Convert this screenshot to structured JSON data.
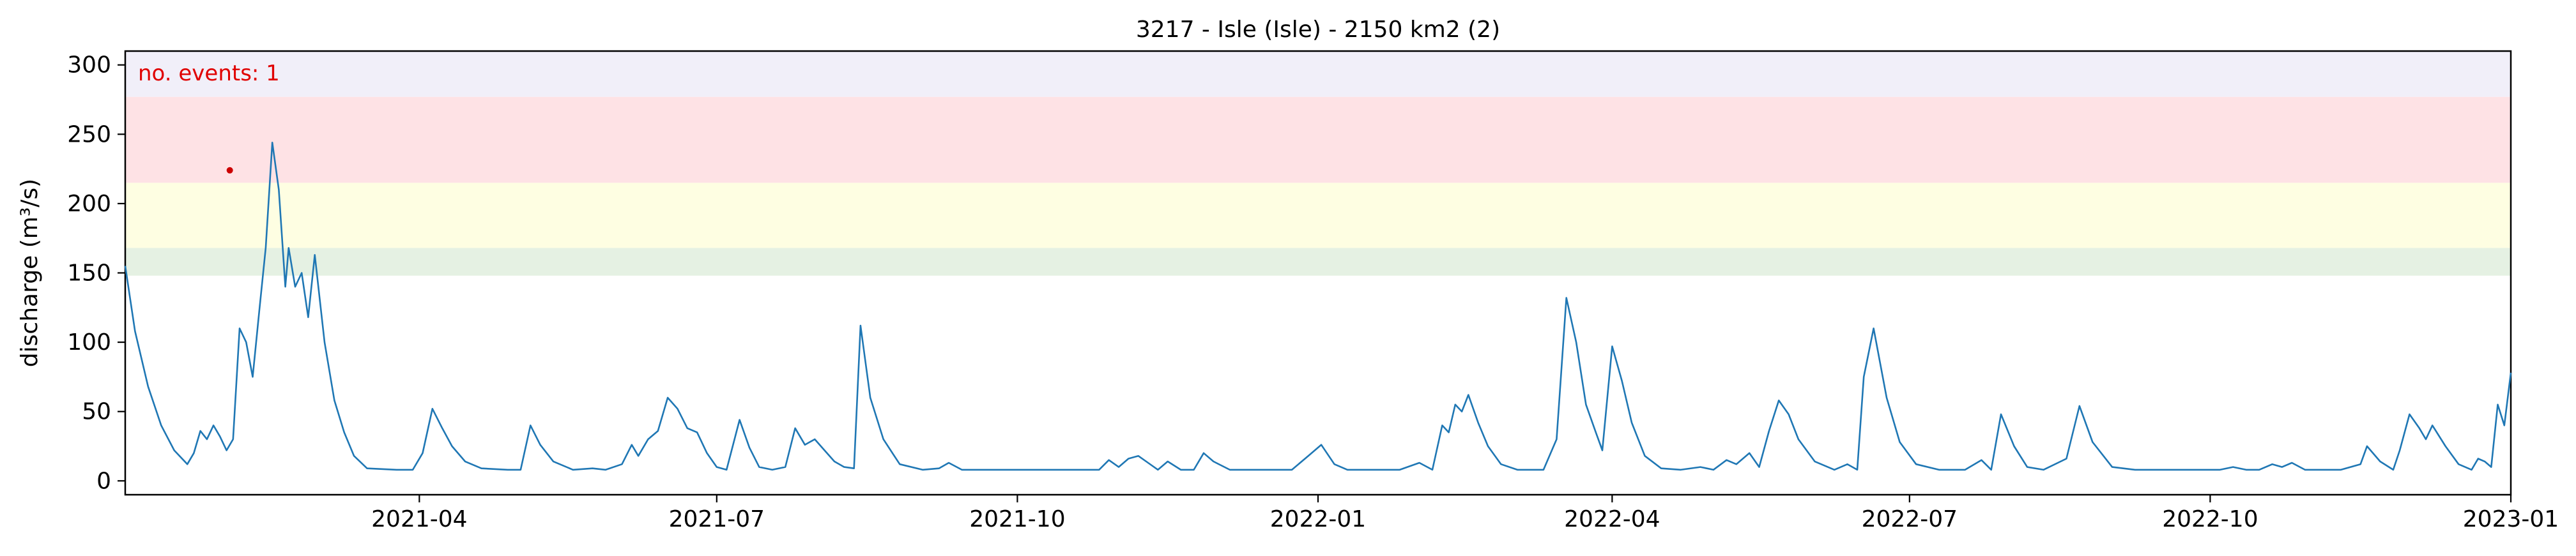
{
  "chart_data": {
    "type": "line",
    "title": "3217 - Isle (Isle) - 2150 km2 (2)",
    "xlabel": "",
    "ylabel": "discharge (m³/s)",
    "xlim": [
      "2021-01-01",
      "2023-01-01"
    ],
    "ylim": [
      -10,
      310
    ],
    "x_ticks": [
      "2021-04-01",
      "2021-07-01",
      "2021-10-01",
      "2022-01-01",
      "2022-04-01",
      "2022-07-01",
      "2022-10-01",
      "2023-01-01"
    ],
    "x_tick_labels": [
      "2021-04",
      "2021-07",
      "2021-10",
      "2022-01",
      "2022-04",
      "2022-07",
      "2022-10",
      "2023-01"
    ],
    "y_ticks": [
      0,
      50,
      100,
      150,
      200,
      250,
      300
    ],
    "y_tick_labels": [
      "0",
      "50",
      "100",
      "150",
      "200",
      "250",
      "300"
    ],
    "grid": false,
    "bands": [
      {
        "from": 148,
        "to": 168,
        "color": "#e5f1e3"
      },
      {
        "from": 168,
        "to": 215,
        "color": "#fefee2"
      },
      {
        "from": 215,
        "to": 277,
        "color": "#fee2e5"
      },
      {
        "from": 277,
        "to": 310,
        "color": "#f1eff9"
      }
    ],
    "annotation": {
      "text": "no. events: 1",
      "color": "#e00000"
    },
    "events": [
      {
        "x": "2021-02-02",
        "y": 224,
        "color": "#cc0000"
      }
    ],
    "series": [
      {
        "color": "#1f77b4",
        "points": [
          [
            "2021-01-01",
            155
          ],
          [
            "2021-01-04",
            108
          ],
          [
            "2021-01-08",
            68
          ],
          [
            "2021-01-12",
            40
          ],
          [
            "2021-01-16",
            22
          ],
          [
            "2021-01-20",
            12
          ],
          [
            "2021-01-22",
            20
          ],
          [
            "2021-01-24",
            36
          ],
          [
            "2021-01-26",
            30
          ],
          [
            "2021-01-28",
            40
          ],
          [
            "2021-01-30",
            32
          ],
          [
            "2021-02-01",
            22
          ],
          [
            "2021-02-03",
            30
          ],
          [
            "2021-02-05",
            110
          ],
          [
            "2021-02-07",
            100
          ],
          [
            "2021-02-09",
            75
          ],
          [
            "2021-02-11",
            122
          ],
          [
            "2021-02-13",
            168
          ],
          [
            "2021-02-15",
            244
          ],
          [
            "2021-02-17",
            210
          ],
          [
            "2021-02-19",
            140
          ],
          [
            "2021-02-20",
            168
          ],
          [
            "2021-02-22",
            140
          ],
          [
            "2021-02-24",
            150
          ],
          [
            "2021-02-26",
            118
          ],
          [
            "2021-02-28",
            163
          ],
          [
            "2021-03-03",
            100
          ],
          [
            "2021-03-06",
            58
          ],
          [
            "2021-03-09",
            35
          ],
          [
            "2021-03-12",
            18
          ],
          [
            "2021-03-16",
            9
          ],
          [
            "2021-03-25",
            8
          ],
          [
            "2021-03-30",
            8
          ],
          [
            "2021-04-02",
            20
          ],
          [
            "2021-04-05",
            52
          ],
          [
            "2021-04-08",
            38
          ],
          [
            "2021-04-11",
            25
          ],
          [
            "2021-04-15",
            14
          ],
          [
            "2021-04-20",
            9
          ],
          [
            "2021-04-28",
            8
          ],
          [
            "2021-05-02",
            8
          ],
          [
            "2021-05-05",
            40
          ],
          [
            "2021-05-08",
            26
          ],
          [
            "2021-05-12",
            14
          ],
          [
            "2021-05-18",
            8
          ],
          [
            "2021-05-24",
            9
          ],
          [
            "2021-05-28",
            8
          ],
          [
            "2021-06-02",
            12
          ],
          [
            "2021-06-05",
            26
          ],
          [
            "2021-06-07",
            18
          ],
          [
            "2021-06-10",
            30
          ],
          [
            "2021-06-13",
            36
          ],
          [
            "2021-06-16",
            60
          ],
          [
            "2021-06-19",
            52
          ],
          [
            "2021-06-22",
            38
          ],
          [
            "2021-06-25",
            35
          ],
          [
            "2021-06-28",
            20
          ],
          [
            "2021-07-01",
            10
          ],
          [
            "2021-07-04",
            8
          ],
          [
            "2021-07-08",
            44
          ],
          [
            "2021-07-11",
            24
          ],
          [
            "2021-07-14",
            10
          ],
          [
            "2021-07-18",
            8
          ],
          [
            "2021-07-22",
            10
          ],
          [
            "2021-07-25",
            38
          ],
          [
            "2021-07-28",
            26
          ],
          [
            "2021-07-31",
            30
          ],
          [
            "2021-08-03",
            22
          ],
          [
            "2021-08-06",
            14
          ],
          [
            "2021-08-09",
            10
          ],
          [
            "2021-08-12",
            9
          ],
          [
            "2021-08-14",
            112
          ],
          [
            "2021-08-17",
            60
          ],
          [
            "2021-08-21",
            30
          ],
          [
            "2021-08-26",
            12
          ],
          [
            "2021-09-02",
            8
          ],
          [
            "2021-09-07",
            9
          ],
          [
            "2021-09-10",
            13
          ],
          [
            "2021-09-14",
            8
          ],
          [
            "2021-09-22",
            8
          ],
          [
            "2021-10-02",
            8
          ],
          [
            "2021-10-12",
            8
          ],
          [
            "2021-10-20",
            8
          ],
          [
            "2021-10-26",
            8
          ],
          [
            "2021-10-29",
            15
          ],
          [
            "2021-11-01",
            10
          ],
          [
            "2021-11-04",
            16
          ],
          [
            "2021-11-07",
            18
          ],
          [
            "2021-11-10",
            13
          ],
          [
            "2021-11-13",
            8
          ],
          [
            "2021-11-16",
            14
          ],
          [
            "2021-11-20",
            8
          ],
          [
            "2021-11-24",
            8
          ],
          [
            "2021-11-27",
            20
          ],
          [
            "2021-11-30",
            14
          ],
          [
            "2021-12-05",
            8
          ],
          [
            "2021-12-15",
            8
          ],
          [
            "2021-12-24",
            8
          ],
          [
            "2021-12-29",
            18
          ],
          [
            "2022-01-02",
            26
          ],
          [
            "2022-01-06",
            12
          ],
          [
            "2022-01-10",
            8
          ],
          [
            "2022-01-18",
            8
          ],
          [
            "2022-01-26",
            8
          ],
          [
            "2022-02-01",
            13
          ],
          [
            "2022-02-05",
            8
          ],
          [
            "2022-02-08",
            40
          ],
          [
            "2022-02-10",
            35
          ],
          [
            "2022-02-12",
            55
          ],
          [
            "2022-02-14",
            50
          ],
          [
            "2022-02-16",
            62
          ],
          [
            "2022-02-19",
            42
          ],
          [
            "2022-02-22",
            25
          ],
          [
            "2022-02-26",
            12
          ],
          [
            "2022-03-03",
            8
          ],
          [
            "2022-03-11",
            8
          ],
          [
            "2022-03-15",
            30
          ],
          [
            "2022-03-18",
            132
          ],
          [
            "2022-03-21",
            100
          ],
          [
            "2022-03-24",
            55
          ],
          [
            "2022-03-27",
            35
          ],
          [
            "2022-03-29",
            22
          ],
          [
            "2022-04-01",
            97
          ],
          [
            "2022-04-04",
            72
          ],
          [
            "2022-04-07",
            42
          ],
          [
            "2022-04-11",
            18
          ],
          [
            "2022-04-16",
            9
          ],
          [
            "2022-04-22",
            8
          ],
          [
            "2022-04-28",
            10
          ],
          [
            "2022-05-02",
            8
          ],
          [
            "2022-05-06",
            15
          ],
          [
            "2022-05-09",
            12
          ],
          [
            "2022-05-13",
            20
          ],
          [
            "2022-05-16",
            10
          ],
          [
            "2022-05-19",
            36
          ],
          [
            "2022-05-22",
            58
          ],
          [
            "2022-05-25",
            48
          ],
          [
            "2022-05-28",
            30
          ],
          [
            "2022-06-02",
            14
          ],
          [
            "2022-06-08",
            8
          ],
          [
            "2022-06-12",
            12
          ],
          [
            "2022-06-15",
            8
          ],
          [
            "2022-06-17",
            75
          ],
          [
            "2022-06-20",
            110
          ],
          [
            "2022-06-24",
            60
          ],
          [
            "2022-06-28",
            28
          ],
          [
            "2022-07-03",
            12
          ],
          [
            "2022-07-10",
            8
          ],
          [
            "2022-07-18",
            8
          ],
          [
            "2022-07-23",
            15
          ],
          [
            "2022-07-26",
            8
          ],
          [
            "2022-07-29",
            48
          ],
          [
            "2022-08-02",
            25
          ],
          [
            "2022-08-06",
            10
          ],
          [
            "2022-08-11",
            8
          ],
          [
            "2022-08-18",
            16
          ],
          [
            "2022-08-22",
            54
          ],
          [
            "2022-08-26",
            28
          ],
          [
            "2022-09-01",
            10
          ],
          [
            "2022-09-08",
            8
          ],
          [
            "2022-09-14",
            8
          ],
          [
            "2022-09-18",
            8
          ],
          [
            "2022-09-24",
            8
          ],
          [
            "2022-09-28",
            8
          ],
          [
            "2022-10-04",
            8
          ],
          [
            "2022-10-08",
            10
          ],
          [
            "2022-10-12",
            8
          ],
          [
            "2022-10-16",
            8
          ],
          [
            "2022-10-20",
            12
          ],
          [
            "2022-10-23",
            10
          ],
          [
            "2022-10-26",
            13
          ],
          [
            "2022-10-30",
            8
          ],
          [
            "2022-11-04",
            8
          ],
          [
            "2022-11-10",
            8
          ],
          [
            "2022-11-16",
            12
          ],
          [
            "2022-11-18",
            25
          ],
          [
            "2022-11-22",
            14
          ],
          [
            "2022-11-26",
            8
          ],
          [
            "2022-11-28",
            22
          ],
          [
            "2022-12-01",
            48
          ],
          [
            "2022-12-04",
            38
          ],
          [
            "2022-12-06",
            30
          ],
          [
            "2022-12-08",
            40
          ],
          [
            "2022-12-12",
            25
          ],
          [
            "2022-12-16",
            12
          ],
          [
            "2022-12-20",
            8
          ],
          [
            "2022-12-22",
            16
          ],
          [
            "2022-12-24",
            14
          ],
          [
            "2022-12-26",
            10
          ],
          [
            "2022-12-28",
            55
          ],
          [
            "2022-12-30",
            40
          ],
          [
            "2023-01-01",
            78
          ]
        ]
      }
    ]
  }
}
